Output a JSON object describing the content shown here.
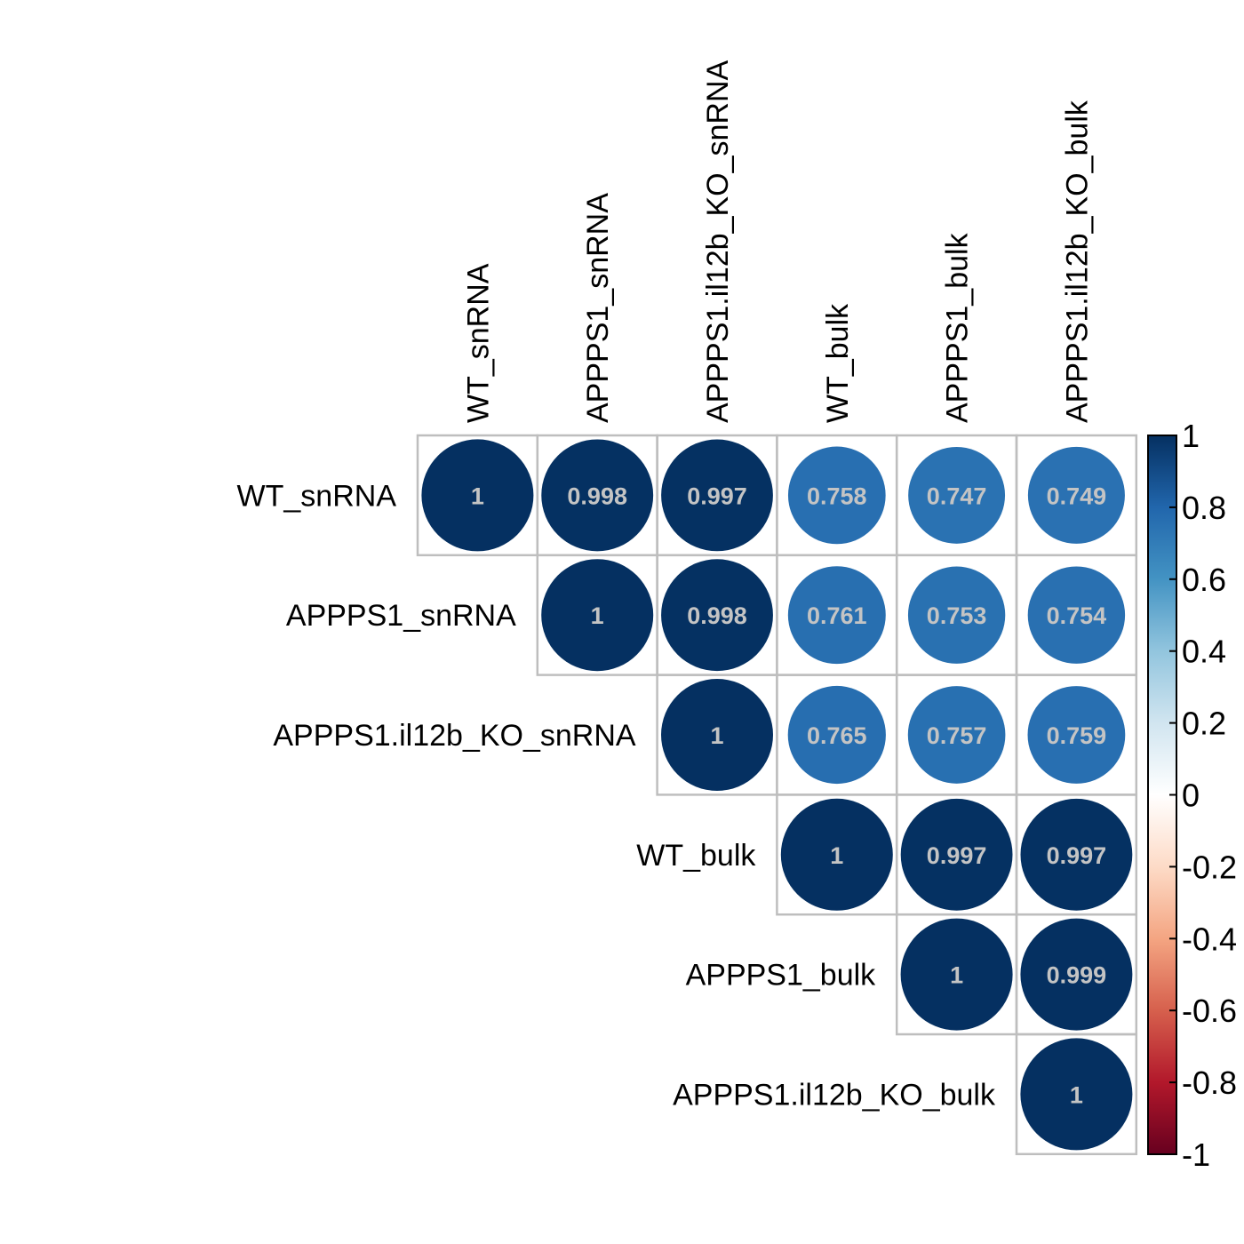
{
  "chart_data": {
    "type": "heatmap",
    "style": "corrplot-circle-upper",
    "variables": [
      "WT_snRNA",
      "APPPS1_snRNA",
      "APPPS1.il12b_KO_snRNA",
      "WT_bulk",
      "APPPS1_bulk",
      "APPPS1.il12b_KO_bulk"
    ],
    "matrix": [
      [
        1,
        0.998,
        0.997,
        0.758,
        0.747,
        0.749
      ],
      [
        0.998,
        1,
        0.998,
        0.761,
        0.753,
        0.754
      ],
      [
        0.997,
        0.998,
        1,
        0.765,
        0.757,
        0.759
      ],
      [
        0.758,
        0.761,
        0.765,
        1,
        0.997,
        0.997
      ],
      [
        0.747,
        0.753,
        0.757,
        0.997,
        1,
        0.999
      ],
      [
        0.749,
        0.754,
        0.759,
        0.997,
        0.999,
        1
      ]
    ],
    "cell_labels": [
      [
        "1",
        "0.998",
        "0.997",
        "0.758",
        "0.747",
        "0.749"
      ],
      [
        "",
        "1",
        "0.998",
        "0.761",
        "0.753",
        "0.754"
      ],
      [
        "",
        "",
        "1",
        "0.765",
        "0.757",
        "0.759"
      ],
      [
        "",
        "",
        "",
        "1",
        "0.997",
        "0.997"
      ],
      [
        "",
        "",
        "",
        "",
        "1",
        "0.999"
      ],
      [
        "",
        "",
        "",
        "",
        "",
        "1"
      ]
    ],
    "show": "upper triangle",
    "colorbar": {
      "range": [
        -1,
        1
      ],
      "ticks": [
        "1",
        "0.8",
        "0.6",
        "0.4",
        "0.2",
        "0",
        "-0.2",
        "-0.4",
        "-0.6",
        "-0.8",
        "-1"
      ],
      "tick_values": [
        1,
        0.8,
        0.6,
        0.4,
        0.2,
        0,
        -0.2,
        -0.4,
        -0.6,
        -0.8,
        -1
      ],
      "palette": [
        "#67001F",
        "#B2182B",
        "#D6604D",
        "#F4A582",
        "#FDDBC7",
        "#FFFFFF",
        "#D1E5F0",
        "#92C5DE",
        "#4393C3",
        "#2166AC",
        "#053061"
      ]
    },
    "colors": {
      "grid": "#bebebe",
      "cell_text": "#c4c4c4"
    }
  }
}
